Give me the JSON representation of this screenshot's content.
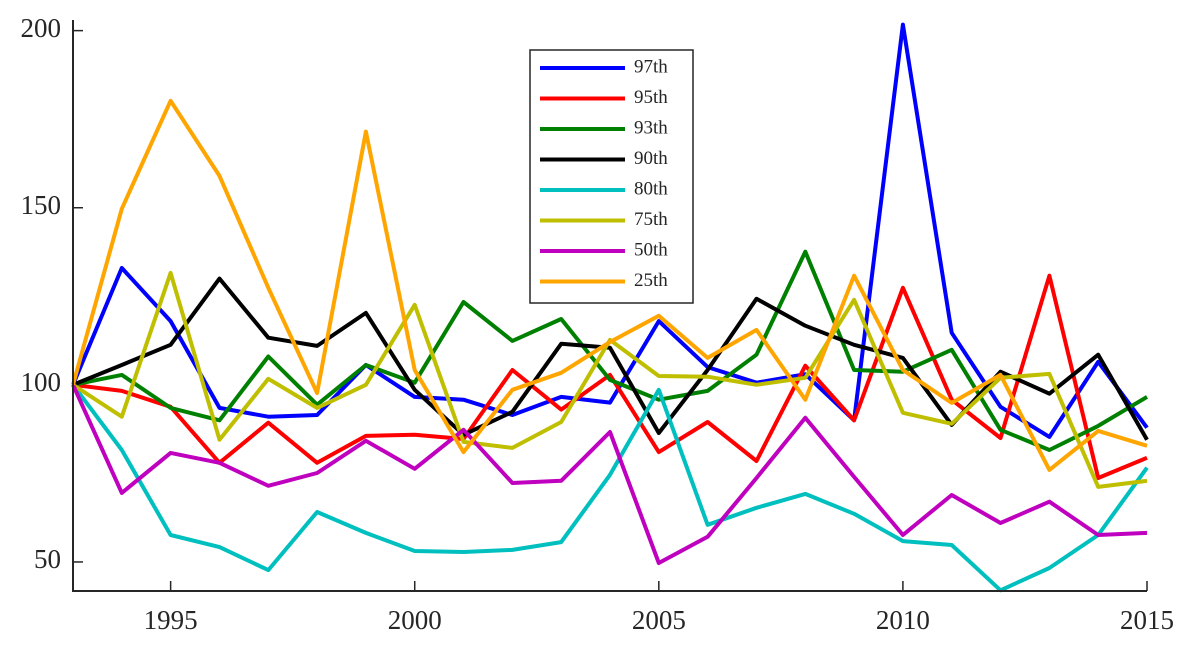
{
  "chart_data": {
    "type": "line",
    "x": [
      1993,
      1994,
      1995,
      1996,
      1997,
      1998,
      1999,
      2000,
      2001,
      2002,
      2003,
      2004,
      2005,
      2006,
      2007,
      2008,
      2009,
      2010,
      2011,
      2012,
      2013,
      2014,
      2015
    ],
    "series": [
      {
        "name": "97th",
        "color": "#0000ff",
        "values": [
          100,
          133,
          118,
          93.5,
          91,
          91.5,
          105.6,
          96.6,
          95.8,
          91.5,
          96.6,
          95,
          118,
          105,
          100.6,
          103,
          90,
          201.7,
          114.7,
          93.8,
          85.3,
          106.5,
          87.9
        ]
      },
      {
        "name": "95th",
        "color": "#ff0000",
        "values": [
          100,
          98.3,
          93.8,
          78,
          89.3,
          78,
          85.6,
          85.9,
          84.7,
          104.2,
          93,
          102.8,
          81,
          89.5,
          78.5,
          105.4,
          90,
          127.4,
          95.8,
          85,
          130.8,
          73.7,
          79.4
        ]
      },
      {
        "name": "93th",
        "color": "#008000",
        "values": [
          100,
          102.8,
          93.5,
          90,
          108,
          94.4,
          105.6,
          100.6,
          123.4,
          112.4,
          118.6,
          101.4,
          95.8,
          98.3,
          108.5,
          137.6,
          104.2,
          103.7,
          109.9,
          87.3,
          81.6,
          88.4,
          96.6
        ]
      },
      {
        "name": "90th",
        "color": "#000000",
        "values": [
          100,
          105.6,
          111.3,
          130,
          113.3,
          111,
          120.3,
          98.6,
          85.9,
          92.4,
          111.6,
          110.5,
          86.4,
          104.2,
          124.3,
          116.7,
          111.3,
          107.6,
          88.7,
          103.7,
          97.5,
          108.5,
          84.5
        ]
      },
      {
        "name": "80th",
        "color": "#00bfbf",
        "values": [
          100,
          81.6,
          57.6,
          54.2,
          47.7,
          64.1,
          58.2,
          53.1,
          52.8,
          53.4,
          55.6,
          74.6,
          98.6,
          60.5,
          65.3,
          69.2,
          63.6,
          55.9,
          54.8,
          42,
          48.3,
          57.6,
          76.6
        ]
      },
      {
        "name": "75th",
        "color": "#bfbf00",
        "values": [
          100,
          91,
          131.6,
          84.5,
          101.7,
          93.5,
          100,
          122.6,
          83.9,
          82.2,
          89.5,
          112.7,
          102.5,
          102.3,
          100,
          102,
          124,
          92.1,
          89,
          102,
          103.1,
          71.2,
          72.9
        ]
      },
      {
        "name": "50th",
        "color": "#bf00bf",
        "values": [
          100,
          69.5,
          80.8,
          78,
          71.5,
          75.1,
          84.2,
          76.3,
          87.3,
          72.3,
          72.9,
          86.7,
          49.7,
          57.1,
          73.7,
          90.7,
          74,
          57.6,
          68.9,
          61,
          67,
          57.6,
          58.2
        ]
      },
      {
        "name": "25th",
        "color": "#ffa500",
        "values": [
          100,
          149.7,
          180.2,
          159,
          127.4,
          97.7,
          171.5,
          104.2,
          81,
          98.6,
          103.4,
          112.1,
          119.5,
          107.6,
          115.5,
          95.8,
          130.8,
          104.2,
          94.9,
          102.8,
          76,
          87,
          82.8
        ]
      }
    ],
    "xlim": [
      1993,
      2015
    ],
    "xticks": [
      1995,
      2000,
      2005,
      2010,
      2015
    ],
    "ylim": [
      41.8,
      203
    ],
    "yticks": [
      50,
      100,
      150,
      200
    ],
    "grid": false,
    "legend": "upper center"
  }
}
